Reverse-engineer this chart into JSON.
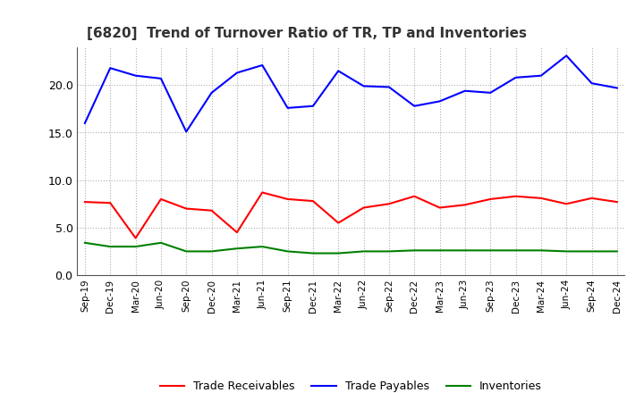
{
  "title": "[6820]  Trend of Turnover Ratio of TR, TP and Inventories",
  "labels": [
    "Sep-19",
    "Dec-19",
    "Mar-20",
    "Jun-20",
    "Sep-20",
    "Dec-20",
    "Mar-21",
    "Jun-21",
    "Sep-21",
    "Dec-21",
    "Mar-22",
    "Jun-22",
    "Sep-22",
    "Dec-22",
    "Mar-23",
    "Jun-23",
    "Sep-23",
    "Dec-23",
    "Mar-24",
    "Jun-24",
    "Sep-24",
    "Dec-24"
  ],
  "trade_receivables": [
    7.7,
    7.6,
    3.9,
    8.0,
    7.0,
    6.8,
    4.5,
    8.7,
    8.0,
    7.8,
    5.5,
    7.1,
    7.5,
    8.3,
    7.1,
    7.4,
    8.0,
    8.3,
    8.1,
    7.5,
    8.1,
    7.7
  ],
  "trade_payables": [
    16.0,
    21.8,
    21.0,
    20.7,
    15.1,
    19.2,
    21.3,
    22.1,
    17.6,
    17.8,
    21.5,
    19.9,
    19.8,
    17.8,
    18.3,
    19.4,
    19.2,
    20.8,
    21.0,
    23.1,
    20.2,
    19.7
  ],
  "inventories": [
    3.4,
    3.0,
    3.0,
    3.4,
    2.5,
    2.5,
    2.8,
    3.0,
    2.5,
    2.3,
    2.3,
    2.5,
    2.5,
    2.6,
    2.6,
    2.6,
    2.6,
    2.6,
    2.6,
    2.5,
    2.5,
    2.5
  ],
  "tr_color": "#ff0000",
  "tp_color": "#0000ff",
  "inv_color": "#008000",
  "ylim": [
    0,
    24
  ],
  "yticks": [
    0.0,
    5.0,
    10.0,
    15.0,
    20.0
  ],
  "legend_labels": [
    "Trade Receivables",
    "Trade Payables",
    "Inventories"
  ],
  "bg_color": "#ffffff",
  "grid_color": "#999999",
  "title_color": "#333333"
}
